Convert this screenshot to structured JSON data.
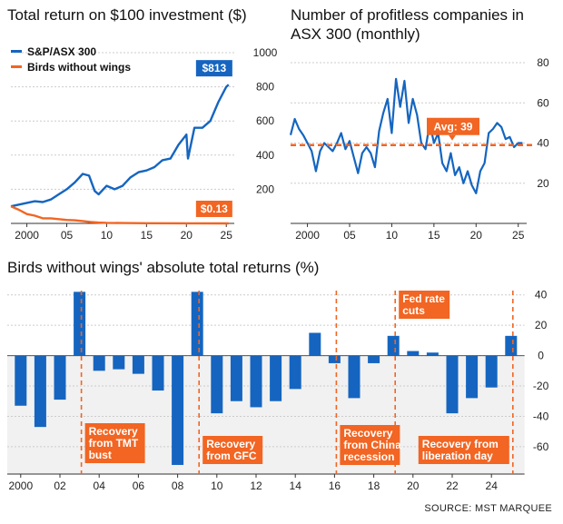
{
  "source": "SOURCE: MST MARQUEE",
  "colors": {
    "blue": "#1565c0",
    "orange": "#f26522",
    "axis": "#333333",
    "grid": "#cccccc",
    "shade": "#f1f1f1"
  },
  "chart_data": [
    {
      "type": "line",
      "title": "Total return on $100 investment ($)",
      "x_ticks": [
        "2000",
        "05",
        "10",
        "15",
        "20",
        "25"
      ],
      "y_ticks": [
        200,
        400,
        600,
        800,
        1000
      ],
      "xlim": [
        1998,
        2026
      ],
      "ylim": [
        0,
        1000
      ],
      "series": [
        {
          "name": "S&P/ASX 300",
          "color": "#1565c0",
          "x": [
            1998,
            1999,
            2000,
            2001,
            2002,
            2003,
            2004,
            2005,
            2006,
            2007,
            2007.8,
            2008.5,
            2009,
            2010,
            2011,
            2012,
            2013,
            2014,
            2015,
            2016,
            2017,
            2018,
            2019,
            2020,
            2020.2,
            2021,
            2022,
            2023,
            2024,
            2025,
            2025.3
          ],
          "values": [
            100,
            110,
            120,
            130,
            125,
            140,
            170,
            200,
            240,
            290,
            280,
            190,
            170,
            220,
            200,
            220,
            270,
            300,
            310,
            330,
            370,
            380,
            460,
            520,
            380,
            560,
            560,
            600,
            710,
            800,
            813
          ],
          "end_label": "$813"
        },
        {
          "name": "Birds without wings",
          "color": "#f26522",
          "x": [
            1998,
            1999,
            2000,
            2001,
            2002,
            2003,
            2004,
            2005,
            2006,
            2007,
            2008,
            2009,
            2010,
            2012,
            2015,
            2020,
            2025,
            2025.3
          ],
          "values": [
            100,
            80,
            55,
            45,
            30,
            30,
            25,
            20,
            18,
            14,
            8,
            5,
            3,
            2,
            1,
            0.5,
            0.2,
            0.13
          ],
          "end_label": "$0.13"
        }
      ]
    },
    {
      "type": "line",
      "title": "Number of profitless companies in ASX 300 (monthly)",
      "x_ticks": [
        "2000",
        "05",
        "10",
        "15",
        "20",
        "25"
      ],
      "y_ticks": [
        20,
        40,
        60,
        80
      ],
      "xlim": [
        1998,
        2026
      ],
      "ylim": [
        0,
        85
      ],
      "average": 39,
      "average_label": "Avg: 39",
      "series": [
        {
          "name": "",
          "color": "#1565c0",
          "x": [
            1998,
            1998.5,
            1999,
            1999.5,
            2000,
            2000.5,
            2001,
            2001.5,
            2002,
            2002.5,
            2003,
            2003.5,
            2004,
            2004.5,
            2005,
            2005.5,
            2006,
            2006.5,
            2007,
            2007.5,
            2008,
            2008.5,
            2009,
            2009.5,
            2010,
            2010.5,
            2011,
            2011.5,
            2012,
            2012.5,
            2013,
            2013.5,
            2014,
            2014.5,
            2015,
            2015.5,
            2016,
            2016.5,
            2017,
            2017.5,
            2018,
            2018.5,
            2019,
            2019.5,
            2020,
            2020.5,
            2021,
            2021.5,
            2022,
            2022.5,
            2023,
            2023.5,
            2024,
            2024.5,
            2025,
            2025.5
          ],
          "values": [
            44,
            52,
            47,
            44,
            40,
            36,
            26,
            36,
            40,
            38,
            36,
            40,
            45,
            37,
            41,
            33,
            25,
            35,
            38,
            35,
            28,
            46,
            55,
            62,
            45,
            72,
            58,
            71,
            50,
            62,
            54,
            40,
            37,
            50,
            40,
            45,
            30,
            26,
            35,
            24,
            28,
            20,
            26,
            19,
            15,
            26,
            30,
            45,
            47,
            50,
            48,
            42,
            43,
            38,
            40,
            40
          ]
        }
      ]
    },
    {
      "type": "bar",
      "title": "Birds without wings' absolute total returns (%)",
      "x_ticks": [
        "2000",
        "02",
        "04",
        "06",
        "08",
        "10",
        "12",
        "14",
        "16",
        "18",
        "20",
        "22",
        "24"
      ],
      "y_ticks": [
        40,
        20,
        0,
        -20,
        -40,
        -60
      ],
      "ylim": [
        -78,
        44
      ],
      "categories": [
        "2000",
        "2001",
        "2002",
        "2003",
        "2004",
        "2005",
        "2006",
        "2007",
        "2008",
        "2009",
        "2010",
        "2011",
        "2012",
        "2013",
        "2014",
        "2015",
        "2016",
        "2017",
        "2018",
        "2019",
        "2020",
        "2021",
        "2022",
        "2023",
        "2024",
        "2025"
      ],
      "values": [
        -33,
        -47,
        -29,
        42,
        -10,
        -9,
        -12,
        -23,
        -72,
        42,
        -38,
        -30,
        -34,
        -30,
        -22,
        15,
        -5,
        -28,
        -5,
        13,
        3,
        2,
        -38,
        -28,
        -21,
        13
      ],
      "annotations": [
        {
          "year": 2003,
          "label": "Recovery from TMT bust"
        },
        {
          "year": 2009,
          "label": "Recovery from GFC"
        },
        {
          "year": 2016,
          "label": "Recovery from China recession"
        },
        {
          "year": 2019,
          "label": "Fed rate cuts"
        },
        {
          "year": 2025,
          "label": "Recovery from liberation day"
        }
      ]
    }
  ]
}
